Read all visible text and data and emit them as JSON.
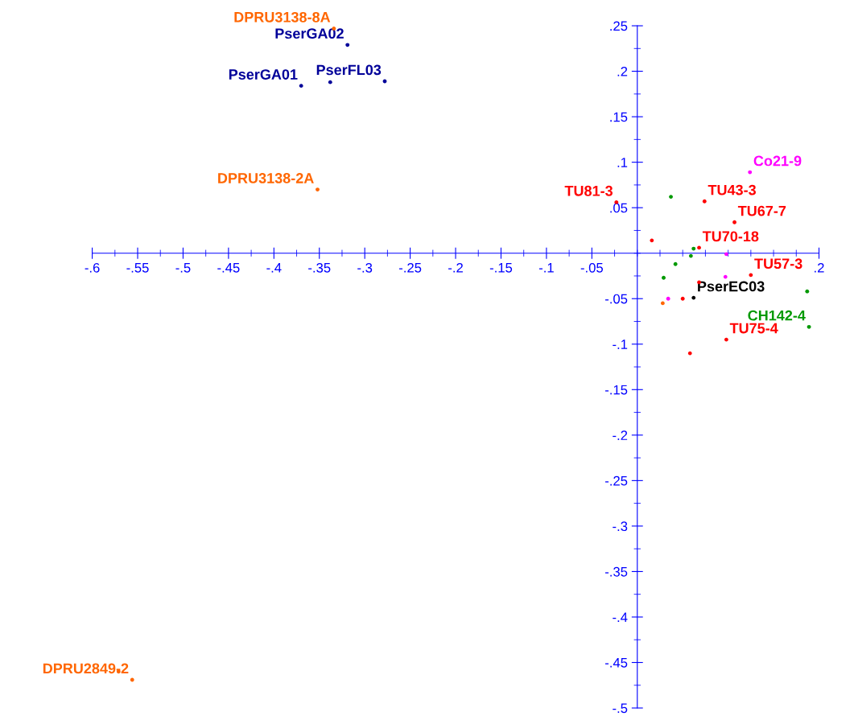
{
  "chart_data": {
    "type": "scatter",
    "xlim": [
      -0.6,
      0.2
    ],
    "ylim": [
      -0.5,
      0.25
    ],
    "xticks": [
      {
        "value": -0.6,
        "label": "-.6"
      },
      {
        "value": -0.575,
        "label": null
      },
      {
        "value": -0.55,
        "label": "-.55"
      },
      {
        "value": -0.525,
        "label": null
      },
      {
        "value": -0.5,
        "label": "-.5"
      },
      {
        "value": -0.475,
        "label": null
      },
      {
        "value": -0.45,
        "label": "-.45"
      },
      {
        "value": -0.425,
        "label": null
      },
      {
        "value": -0.4,
        "label": "-.4"
      },
      {
        "value": -0.375,
        "label": null
      },
      {
        "value": -0.35,
        "label": "-.35"
      },
      {
        "value": -0.325,
        "label": null
      },
      {
        "value": -0.3,
        "label": "-.3"
      },
      {
        "value": -0.275,
        "label": null
      },
      {
        "value": -0.25,
        "label": "-.25"
      },
      {
        "value": -0.225,
        "label": null
      },
      {
        "value": -0.2,
        "label": "-.2"
      },
      {
        "value": -0.175,
        "label": null
      },
      {
        "value": -0.15,
        "label": "-.15"
      },
      {
        "value": -0.125,
        "label": null
      },
      {
        "value": -0.1,
        "label": "-.1"
      },
      {
        "value": -0.075,
        "label": null
      },
      {
        "value": -0.05,
        "label": "-.05"
      },
      {
        "value": -0.025,
        "label": null
      },
      {
        "value": 0,
        "label": null
      },
      {
        "value": 0.025,
        "label": null
      },
      {
        "value": 0.05,
        "label": null
      },
      {
        "value": 0.075,
        "label": null
      },
      {
        "value": 0.1,
        "label": null
      },
      {
        "value": 0.125,
        "label": null
      },
      {
        "value": 0.15,
        "label": null
      },
      {
        "value": 0.175,
        "label": null
      },
      {
        "value": 0.2,
        "label": ".2"
      }
    ],
    "yticks": [
      {
        "value": -0.5,
        "label": "-.5"
      },
      {
        "value": -0.475,
        "label": null
      },
      {
        "value": -0.45,
        "label": "-.45"
      },
      {
        "value": -0.425,
        "label": null
      },
      {
        "value": -0.4,
        "label": "-.4"
      },
      {
        "value": -0.375,
        "label": null
      },
      {
        "value": -0.35,
        "label": "-.35"
      },
      {
        "value": -0.325,
        "label": null
      },
      {
        "value": -0.3,
        "label": "-.3"
      },
      {
        "value": -0.275,
        "label": null
      },
      {
        "value": -0.25,
        "label": "-.25"
      },
      {
        "value": -0.225,
        "label": null
      },
      {
        "value": -0.2,
        "label": "-.2"
      },
      {
        "value": -0.175,
        "label": null
      },
      {
        "value": -0.15,
        "label": "-.15"
      },
      {
        "value": -0.125,
        "label": null
      },
      {
        "value": -0.1,
        "label": "-.1"
      },
      {
        "value": -0.075,
        "label": null
      },
      {
        "value": -0.05,
        "label": "-.05"
      },
      {
        "value": -0.025,
        "label": null
      },
      {
        "value": 0,
        "label": null
      },
      {
        "value": 0.025,
        "label": null
      },
      {
        "value": 0.05,
        "label": ".05"
      },
      {
        "value": 0.075,
        "label": null
      },
      {
        "value": 0.1,
        "label": ".1"
      },
      {
        "value": 0.125,
        "label": null
      },
      {
        "value": 0.15,
        "label": ".15"
      },
      {
        "value": 0.175,
        "label": null
      },
      {
        "value": 0.2,
        "label": ".2"
      },
      {
        "value": 0.225,
        "label": null
      },
      {
        "value": 0.25,
        "label": ".25"
      }
    ],
    "grid": false,
    "legend": false,
    "marker": "circle",
    "series": [
      {
        "color": "#ff6600",
        "x": [
          -0.334,
          -0.352,
          -0.571,
          -0.556,
          0.028
        ],
        "values": [
          0.247,
          0.07,
          -0.46,
          -0.469,
          -0.055
        ]
      },
      {
        "color": "#000099",
        "x": [
          -0.37,
          -0.338,
          -0.278,
          -0.319
        ],
        "values": [
          0.184,
          0.188,
          0.189,
          0.229
        ]
      },
      {
        "color": "#ff0000",
        "x": [
          -0.023,
          0.074,
          0.107,
          0.016,
          0.068,
          0.125,
          0.068,
          0.05,
          0.098,
          0.058
        ],
        "values": [
          0.056,
          0.057,
          0.034,
          0.014,
          0.006,
          -0.024,
          -0.032,
          -0.05,
          -0.095,
          -0.11
        ]
      },
      {
        "color": "#009900",
        "x": [
          0.037,
          0.062,
          0.059,
          0.042,
          0.029,
          0.189,
          0.187
        ],
        "values": [
          0.062,
          0.005,
          -0.003,
          -0.012,
          -0.027,
          -0.081,
          -0.042
        ]
      },
      {
        "color": "#ff00ff",
        "x": [
          0.124,
          0.098,
          0.097,
          0.034
        ],
        "values": [
          0.089,
          -0.001,
          -0.026,
          -0.05
        ]
      },
      {
        "color": "#000000",
        "x": [
          0.062
        ],
        "values": [
          -0.049
        ]
      }
    ],
    "annotations": [
      {
        "text": "DPRU3138-8A",
        "x": -0.334,
        "y": 0.247
      },
      {
        "text": "DPRU3138-2A",
        "x": -0.352,
        "y": 0.07
      },
      {
        "text": "DPRU2849-2",
        "x": -0.556,
        "y": -0.469
      },
      {
        "text": "PserGA02",
        "x": -0.319,
        "y": 0.229
      },
      {
        "text": "PserGA01",
        "x": -0.37,
        "y": 0.184
      },
      {
        "text": "PserFL03",
        "x": -0.278,
        "y": 0.189
      },
      {
        "text": "TU81-3",
        "x": -0.023,
        "y": 0.056
      },
      {
        "text": "TU43-3",
        "x": 0.074,
        "y": 0.057
      },
      {
        "text": "TU67-7",
        "x": 0.107,
        "y": 0.034
      },
      {
        "text": "TU70-18",
        "x": 0.068,
        "y": 0.006
      },
      {
        "text": "TU57-3",
        "x": 0.125,
        "y": -0.024
      },
      {
        "text": "TU75-4",
        "x": 0.098,
        "y": -0.095
      },
      {
        "text": "Co21-9",
        "x": 0.124,
        "y": 0.089
      },
      {
        "text": "PserEC03",
        "x": 0.062,
        "y": -0.049
      },
      {
        "text": "CH142-4",
        "x": 0.189,
        "y": -0.081
      }
    ]
  }
}
